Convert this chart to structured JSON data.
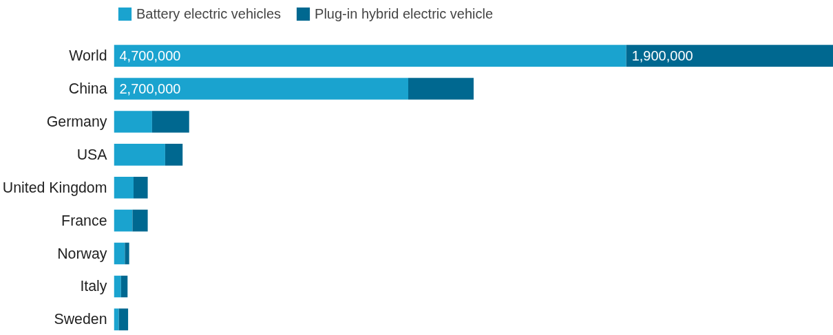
{
  "chart_data": {
    "type": "bar",
    "orientation": "horizontal",
    "stacked": true,
    "legend": "top left",
    "categories": [
      "World",
      "China",
      "Germany",
      "USA",
      "United Kingdom",
      "France",
      "Norway",
      "Italy",
      "Sweden"
    ],
    "series": [
      {
        "name": "Battery electric vehicles",
        "color": "#1aa3cf",
        "values": [
          4700000,
          2700000,
          350000,
          470000,
          180000,
          170000,
          100000,
          65000,
          45000
        ],
        "value_labels": [
          "4,700,000",
          "2,700,000",
          null,
          null,
          null,
          null,
          null,
          null,
          null
        ]
      },
      {
        "name": "Plug-in hybrid electric vehicle",
        "color": "#006890",
        "values": [
          1900000,
          600000,
          340000,
          160000,
          130000,
          140000,
          40000,
          60000,
          85000
        ],
        "value_labels": [
          "1,900,000",
          null,
          null,
          null,
          null,
          null,
          null,
          null,
          null
        ]
      }
    ]
  }
}
